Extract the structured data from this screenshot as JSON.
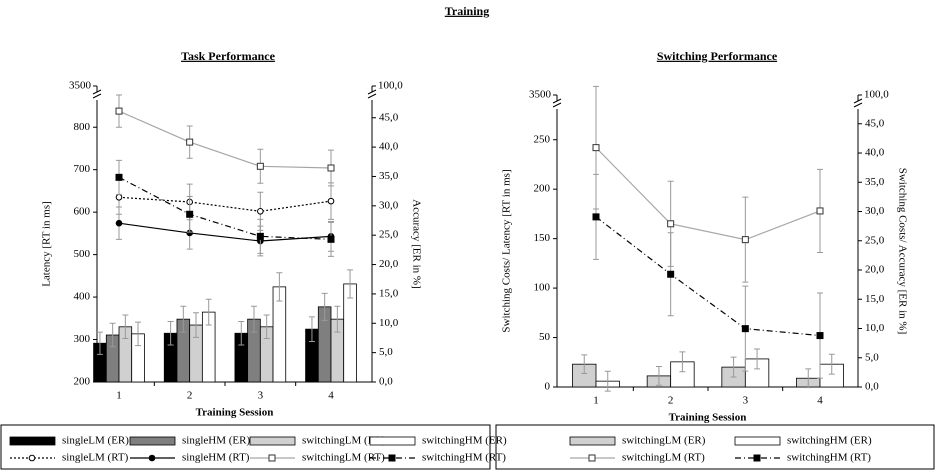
{
  "title": "Training",
  "chart_data": [
    {
      "type": "combo",
      "title": "Task Performance",
      "x_label": "Training Session",
      "y_label": "Latency [RT in ms]",
      "y2_label": "Accuracy [ER in %]",
      "categories": [
        "1",
        "2",
        "3",
        "4"
      ],
      "ylim": [
        200,
        850
      ],
      "yticks": [
        200,
        300,
        400,
        500,
        600,
        700,
        800
      ],
      "y_break_label": "3500",
      "y2lim": [
        0,
        47
      ],
      "y2ticks": [
        {
          "value": 0,
          "label": "0,0"
        },
        {
          "value": 5,
          "label": "5,0"
        },
        {
          "value": 10,
          "label": "10,0"
        },
        {
          "value": 15,
          "label": "15,0"
        },
        {
          "value": 20,
          "label": "20,0"
        },
        {
          "value": 25,
          "label": "25,0"
        },
        {
          "value": 30,
          "label": "30,0"
        },
        {
          "value": 35,
          "label": "35,0"
        },
        {
          "value": 40,
          "label": "40,0"
        },
        {
          "value": 45,
          "label": "45,0"
        }
      ],
      "y2_break_label": "100,0",
      "series": [
        {
          "name": "singleLM (ER)",
          "kind": "bar",
          "axis": "y2",
          "color": "#000000",
          "values": [
            6.6,
            8.3,
            8.3,
            9.0
          ],
          "errors": [
            1.9,
            2.0,
            2.0,
            2.1
          ]
        },
        {
          "name": "singleHM (ER)",
          "kind": "bar",
          "axis": "y2",
          "color": "#7f7f7f",
          "values": [
            8.0,
            10.7,
            10.7,
            12.8
          ],
          "errors": [
            2.0,
            2.2,
            2.2,
            2.3
          ]
        },
        {
          "name": "switchingLM (ER)",
          "kind": "bar",
          "axis": "y2",
          "color": "#d0d0d0",
          "values": [
            9.4,
            9.7,
            9.4,
            10.7
          ],
          "errors": [
            2.0,
            2.1,
            2.0,
            2.2
          ]
        },
        {
          "name": "switchingHM (ER)",
          "kind": "bar",
          "axis": "y2",
          "color": "#ffffff",
          "values": [
            8.2,
            11.9,
            16.2,
            16.7
          ],
          "errors": [
            2.0,
            2.2,
            2.4,
            2.4
          ]
        },
        {
          "name": "singleLM (RT)",
          "kind": "line",
          "axis": "y",
          "color": "#000000",
          "dash": "2,2",
          "marker": "circle-open",
          "values": [
            635,
            624,
            602,
            626
          ],
          "errors": [
            40,
            42,
            45,
            43
          ]
        },
        {
          "name": "singleHM (RT)",
          "kind": "line",
          "axis": "y",
          "color": "#000000",
          "dash": "",
          "marker": "circle-filled",
          "values": [
            574,
            551,
            532,
            543
          ],
          "errors": [
            38,
            38,
            35,
            35
          ]
        },
        {
          "name": "switchingLM (RT)",
          "kind": "line",
          "axis": "y",
          "color": "#a6a6a6",
          "dash": "",
          "marker": "square-open",
          "values": [
            838,
            765,
            708,
            704
          ],
          "errors": [
            38,
            38,
            40,
            42
          ]
        },
        {
          "name": "switchingHM (RT)",
          "kind": "line",
          "axis": "y",
          "color": "#000000",
          "dash": "6,3,1,3",
          "marker": "square-filled",
          "values": [
            682,
            595,
            543,
            536
          ],
          "errors": [
            40,
            42,
            40,
            40
          ]
        }
      ]
    },
    {
      "type": "combo",
      "title": "Switching Performance",
      "x_label": "Training Session",
      "y_label": "Switching Costs/ Latency [RT in ms]",
      "y2_label": "Switching Costs/ Accuracy [ER in %]",
      "categories": [
        "1",
        "2",
        "3",
        "4"
      ],
      "ylim": [
        0,
        275
      ],
      "yticks": [
        0,
        50,
        100,
        150,
        200,
        250
      ],
      "y_break_label": "3500",
      "y2lim": [
        0,
        46.5
      ],
      "y2ticks": [
        {
          "value": 0,
          "label": "0,0"
        },
        {
          "value": 5,
          "label": "5,0"
        },
        {
          "value": 10,
          "label": "10,0"
        },
        {
          "value": 15,
          "label": "15,0"
        },
        {
          "value": 20,
          "label": "20,0"
        },
        {
          "value": 25,
          "label": "25,0"
        },
        {
          "value": 30,
          "label": "30,0"
        },
        {
          "value": 35,
          "label": "35,0"
        },
        {
          "value": 40,
          "label": "40,0"
        },
        {
          "value": 45,
          "label": "45,0"
        }
      ],
      "y2_break_label": "100,0",
      "series": [
        {
          "name": "switchingLM (ER)",
          "kind": "bar",
          "axis": "y2",
          "color": "#d0d0d0",
          "values": [
            3.9,
            1.9,
            3.4,
            1.5
          ],
          "errors": [
            1.6,
            1.6,
            1.7,
            1.6
          ]
        },
        {
          "name": "switchingHM (ER)",
          "kind": "bar",
          "axis": "y2",
          "color": "#ffffff",
          "values": [
            1.0,
            4.3,
            4.8,
            3.9
          ],
          "errors": [
            1.7,
            1.7,
            1.7,
            1.7
          ]
        },
        {
          "name": "switchingLM (RT)",
          "kind": "line",
          "axis": "y",
          "color": "#a6a6a6",
          "dash": "",
          "marker": "square-open",
          "values": [
            242,
            165,
            149,
            178
          ],
          "errors": [
            62,
            43,
            43,
            42
          ]
        },
        {
          "name": "switchingHM (RT)",
          "kind": "line",
          "axis": "y",
          "color": "#000000",
          "dash": "6,3,1,3",
          "marker": "square-filled",
          "values": [
            172,
            114,
            59,
            52
          ],
          "errors": [
            43,
            42,
            43,
            43
          ]
        }
      ]
    }
  ]
}
